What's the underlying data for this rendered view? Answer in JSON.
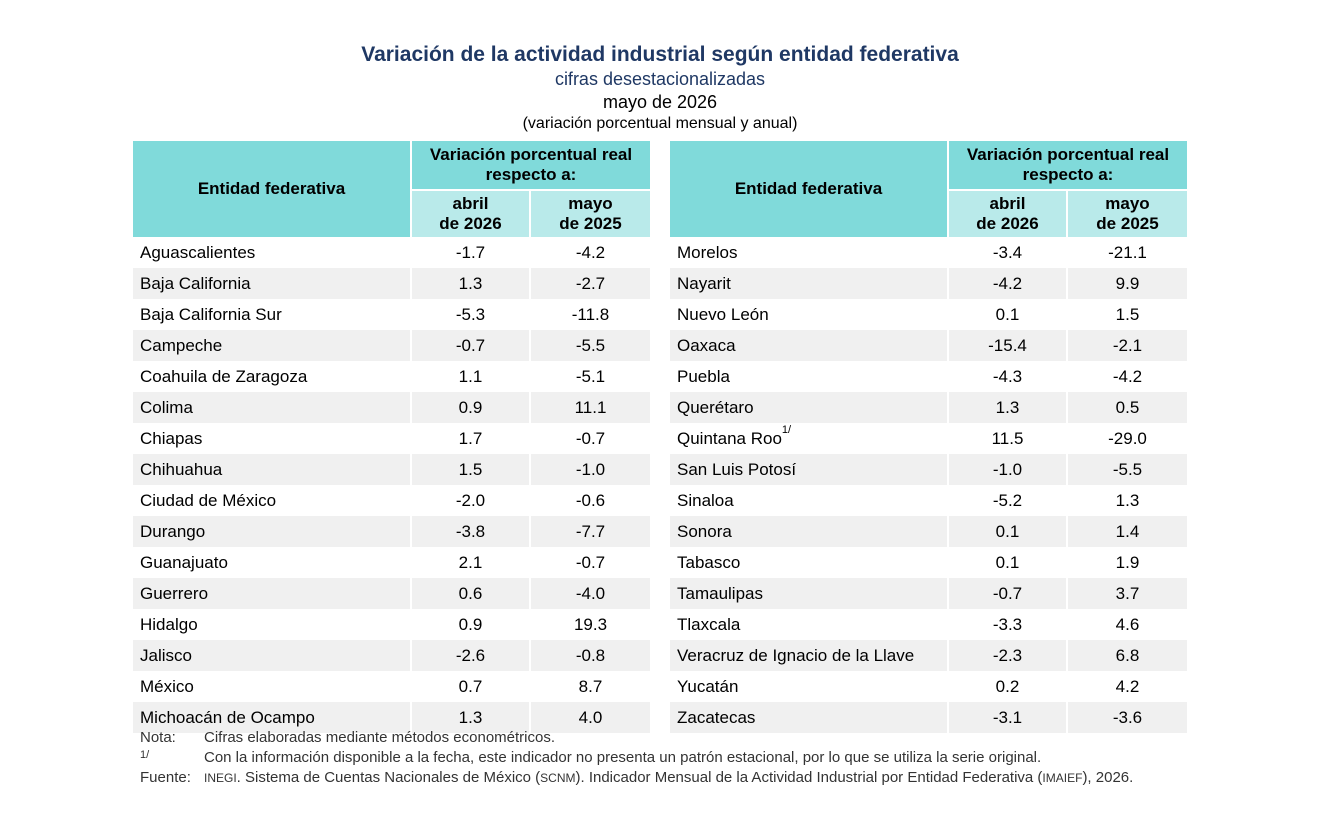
{
  "header": {
    "title": "Variación de la actividad industrial según entidad federativa",
    "subtitle": "cifras desestacionalizadas",
    "period": "mayo de 2026",
    "unit_note": "(variación porcentual mensual y anual)"
  },
  "table_headers": {
    "entity": "Entidad federativa",
    "group_line1": "Variación porcentual real",
    "group_line2": "respecto a:",
    "col1_line1": "abril",
    "col1_line2": "de 2026",
    "col2_line1": "mayo",
    "col2_line2": "de 2025"
  },
  "left_rows": [
    {
      "name": "Aguascalientes",
      "sup": "",
      "m": "-1.7",
      "a": "-4.2"
    },
    {
      "name": "Baja California",
      "sup": "",
      "m": "1.3",
      "a": "-2.7"
    },
    {
      "name": "Baja California Sur",
      "sup": "",
      "m": "-5.3",
      "a": "-11.8"
    },
    {
      "name": "Campeche",
      "sup": "",
      "m": "-0.7",
      "a": "-5.5"
    },
    {
      "name": "Coahuila de Zaragoza",
      "sup": "",
      "m": "1.1",
      "a": "-5.1"
    },
    {
      "name": "Colima",
      "sup": "",
      "m": "0.9",
      "a": "11.1"
    },
    {
      "name": "Chiapas",
      "sup": "",
      "m": "1.7",
      "a": "-0.7"
    },
    {
      "name": "Chihuahua",
      "sup": "",
      "m": "1.5",
      "a": "-1.0"
    },
    {
      "name": "Ciudad de México",
      "sup": "",
      "m": "-2.0",
      "a": "-0.6"
    },
    {
      "name": "Durango",
      "sup": "",
      "m": "-3.8",
      "a": "-7.7"
    },
    {
      "name": "Guanajuato",
      "sup": "",
      "m": "2.1",
      "a": "-0.7"
    },
    {
      "name": "Guerrero",
      "sup": "",
      "m": "0.6",
      "a": "-4.0"
    },
    {
      "name": "Hidalgo",
      "sup": "",
      "m": "0.9",
      "a": "19.3"
    },
    {
      "name": "Jalisco",
      "sup": "",
      "m": "-2.6",
      "a": "-0.8"
    },
    {
      "name": "México",
      "sup": "",
      "m": "0.7",
      "a": "8.7"
    },
    {
      "name": "Michoacán de Ocampo",
      "sup": "",
      "m": "1.3",
      "a": "4.0"
    }
  ],
  "right_rows": [
    {
      "name": "Morelos",
      "sup": "",
      "m": "-3.4",
      "a": "-21.1"
    },
    {
      "name": "Nayarit",
      "sup": "",
      "m": "-4.2",
      "a": "9.9"
    },
    {
      "name": "Nuevo León",
      "sup": "",
      "m": "0.1",
      "a": "1.5"
    },
    {
      "name": "Oaxaca",
      "sup": "",
      "m": "-15.4",
      "a": "-2.1"
    },
    {
      "name": "Puebla",
      "sup": "",
      "m": "-4.3",
      "a": "-4.2"
    },
    {
      "name": "Querétaro",
      "sup": "",
      "m": "1.3",
      "a": "0.5"
    },
    {
      "name": "Quintana Roo",
      "sup": "1/",
      "m": "11.5",
      "a": "-29.0"
    },
    {
      "name": "San Luis Potosí",
      "sup": "",
      "m": "-1.0",
      "a": "-5.5"
    },
    {
      "name": "Sinaloa",
      "sup": "",
      "m": "-5.2",
      "a": "1.3"
    },
    {
      "name": "Sonora",
      "sup": "",
      "m": "0.1",
      "a": "1.4"
    },
    {
      "name": "Tabasco",
      "sup": "",
      "m": "0.1",
      "a": "1.9"
    },
    {
      "name": "Tamaulipas",
      "sup": "",
      "m": "-0.7",
      "a": "3.7"
    },
    {
      "name": "Tlaxcala",
      "sup": "",
      "m": "-3.3",
      "a": "4.6"
    },
    {
      "name": "Veracruz de Ignacio de la Llave",
      "sup": "",
      "m": "-2.3",
      "a": "6.8"
    },
    {
      "name": "Yucatán",
      "sup": "",
      "m": "0.2",
      "a": "4.2"
    },
    {
      "name": "Zacatecas",
      "sup": "",
      "m": "-3.1",
      "a": "-3.6"
    }
  ],
  "notes": {
    "nota_label": "Nota:",
    "nota_text": "Cifras elaboradas mediante métodos econométricos.",
    "fn_label": "1/",
    "fn_text": "Con la información disponible a la fecha, este indicador no presenta un patrón estacional, por lo que se utiliza la serie original.",
    "fuente_label": "Fuente:",
    "fuente_inegi": "INEGI",
    "fuente_text1": ". Sistema de Cuentas Nacionales de México (",
    "fuente_scnm": "SCNM",
    "fuente_text2": "). Indicador Mensual de la Actividad Industrial por Entidad Federativa (",
    "fuente_imaief": "IMAIEF",
    "fuente_text3": "), 2026."
  }
}
